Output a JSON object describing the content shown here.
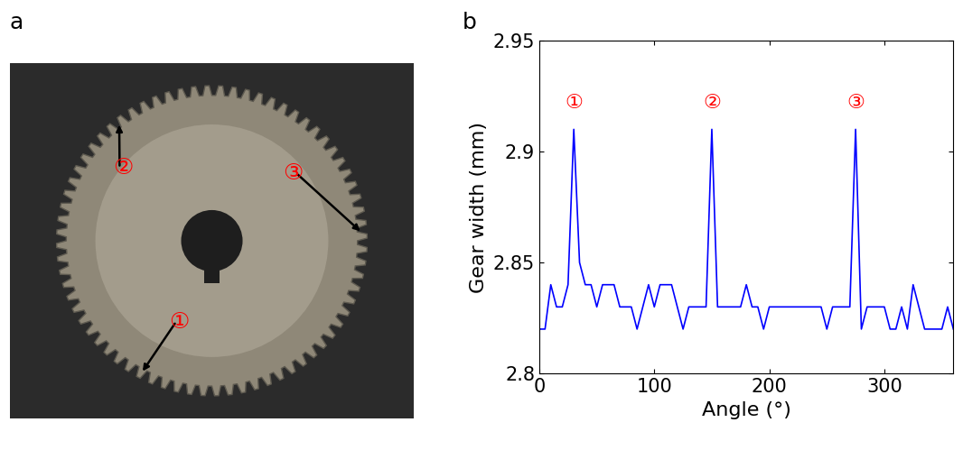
{
  "panel_labels": [
    "a",
    "b"
  ],
  "photo": {
    "markers": [
      "①",
      "②",
      "③"
    ]
  },
  "chart_data": {
    "type": "line",
    "x_label": "Angle (°)",
    "y_label": "Gear width (mm)",
    "annotations": [
      "①",
      "②",
      "③"
    ],
    "x": [
      0,
      5,
      10,
      15,
      20,
      25,
      30,
      35,
      40,
      45,
      50,
      55,
      60,
      65,
      70,
      75,
      80,
      85,
      90,
      95,
      100,
      105,
      110,
      115,
      120,
      125,
      130,
      135,
      140,
      145,
      150,
      155,
      160,
      165,
      170,
      175,
      180,
      185,
      190,
      195,
      200,
      205,
      210,
      215,
      220,
      225,
      230,
      235,
      240,
      245,
      250,
      255,
      260,
      265,
      270,
      275,
      280,
      285,
      290,
      295,
      300,
      305,
      310,
      315,
      320,
      325,
      330,
      335,
      340,
      345,
      350,
      355,
      360
    ],
    "values": [
      2.82,
      2.82,
      2.84,
      2.83,
      2.83,
      2.84,
      2.91,
      2.85,
      2.84,
      2.84,
      2.83,
      2.84,
      2.84,
      2.84,
      2.83,
      2.83,
      2.83,
      2.82,
      2.83,
      2.84,
      2.83,
      2.84,
      2.84,
      2.84,
      2.83,
      2.82,
      2.83,
      2.83,
      2.83,
      2.83,
      2.91,
      2.83,
      2.83,
      2.83,
      2.83,
      2.83,
      2.84,
      2.83,
      2.83,
      2.82,
      2.83,
      2.83,
      2.83,
      2.83,
      2.83,
      2.83,
      2.83,
      2.83,
      2.83,
      2.83,
      2.82,
      2.83,
      2.83,
      2.83,
      2.83,
      2.91,
      2.82,
      2.83,
      2.83,
      2.83,
      2.83,
      2.82,
      2.82,
      2.83,
      2.82,
      2.84,
      2.83,
      2.82,
      2.82,
      2.82,
      2.82,
      2.83,
      2.82
    ],
    "color": "#0000ff",
    "xlim": [
      0,
      360
    ],
    "ylim": [
      2.8,
      2.95
    ],
    "xticks": [
      0,
      100,
      200,
      300
    ],
    "yticks": [
      2.8,
      2.85,
      2.9,
      2.95
    ],
    "grid": false
  }
}
